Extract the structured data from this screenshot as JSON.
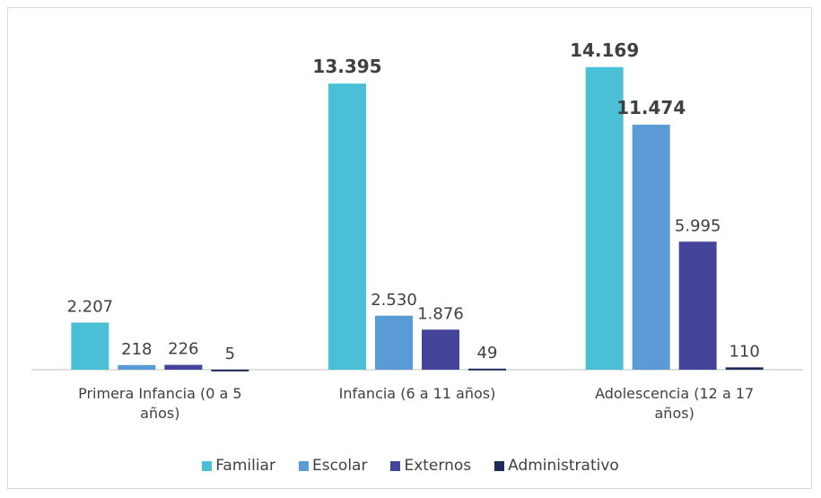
{
  "chart_data": {
    "type": "bar",
    "categories": [
      "Primera Infancia (0 a 5 años)",
      "Infancia (6 a 11 años)",
      "Adolescencia (12 a 17 años)"
    ],
    "series": [
      {
        "name": "Familiar",
        "color": "#4bbfd6",
        "values": [
          2207,
          13395,
          14169
        ],
        "value_labels": [
          "2.207",
          "13.395",
          "14.169"
        ],
        "bold": [
          false,
          true,
          true
        ]
      },
      {
        "name": "Escolar",
        "color": "#5b9bd5",
        "values": [
          218,
          2530,
          11474
        ],
        "value_labels": [
          "218",
          "2.530",
          "11.474"
        ],
        "bold": [
          false,
          false,
          true
        ]
      },
      {
        "name": "Externos",
        "color": "#43449a",
        "values": [
          226,
          1876,
          5995
        ],
        "value_labels": [
          "226",
          "1.876",
          "5.995"
        ],
        "bold": [
          false,
          false,
          false
        ]
      },
      {
        "name": "Administrativo",
        "color": "#1f2a5a",
        "values": [
          5,
          49,
          110
        ],
        "value_labels": [
          "5",
          "49",
          "110"
        ],
        "bold": [
          false,
          false,
          false
        ]
      }
    ],
    "ylim": [
      0,
      15000
    ],
    "legend": "bottom"
  }
}
